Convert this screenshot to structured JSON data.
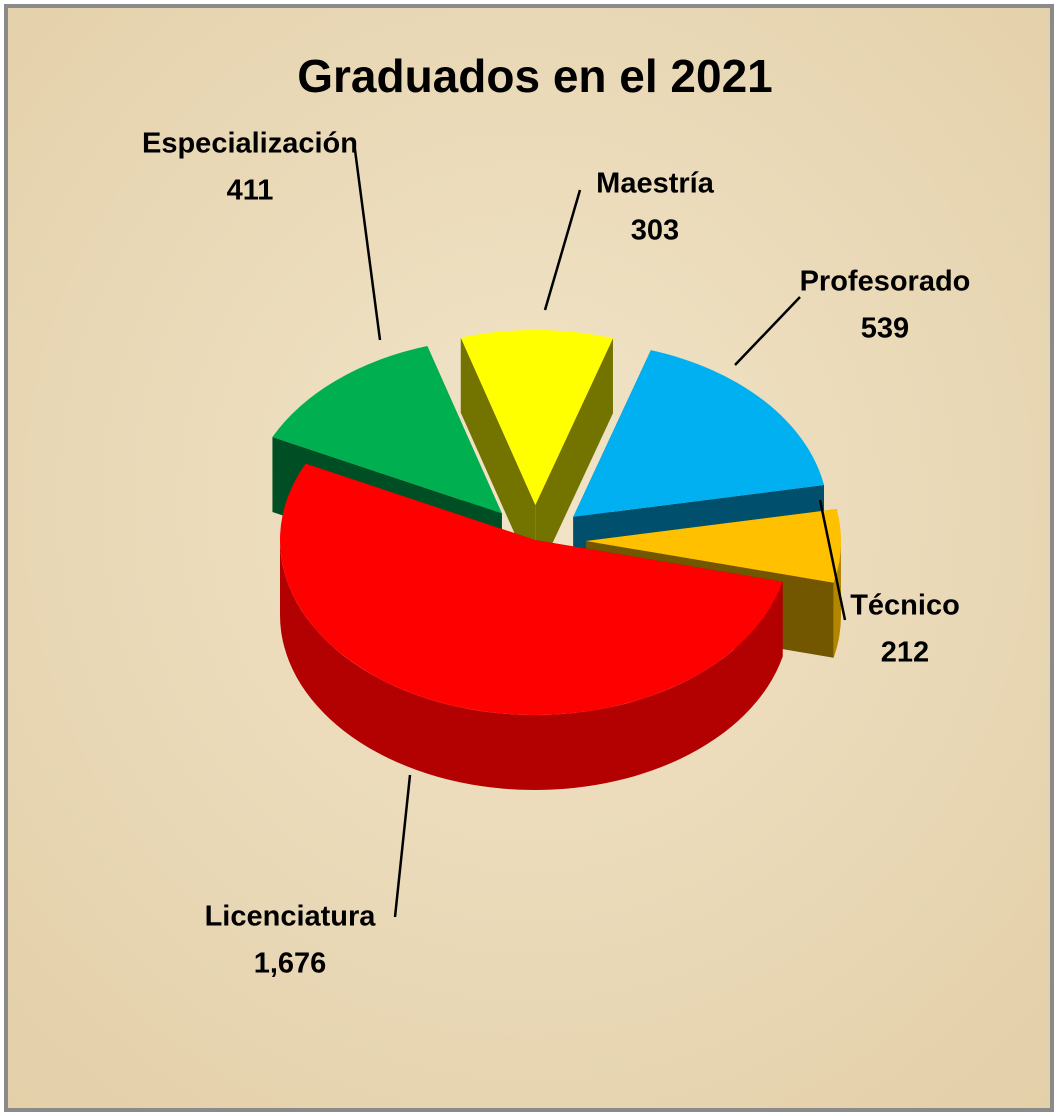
{
  "chart_data": {
    "type": "pie3d",
    "title": "Graduados en el 2021",
    "categories": [
      "Maestría",
      "Profesorado",
      "Técnico",
      "Licenciatura",
      "Especialización"
    ],
    "values": [
      303,
      539,
      212,
      1676,
      411
    ],
    "value_labels": [
      "303",
      "539",
      "212",
      "1,676",
      "411"
    ],
    "colors": [
      "#ffff00",
      "#00b0f0",
      "#ffc000",
      "#ff0000",
      "#00b050"
    ]
  }
}
